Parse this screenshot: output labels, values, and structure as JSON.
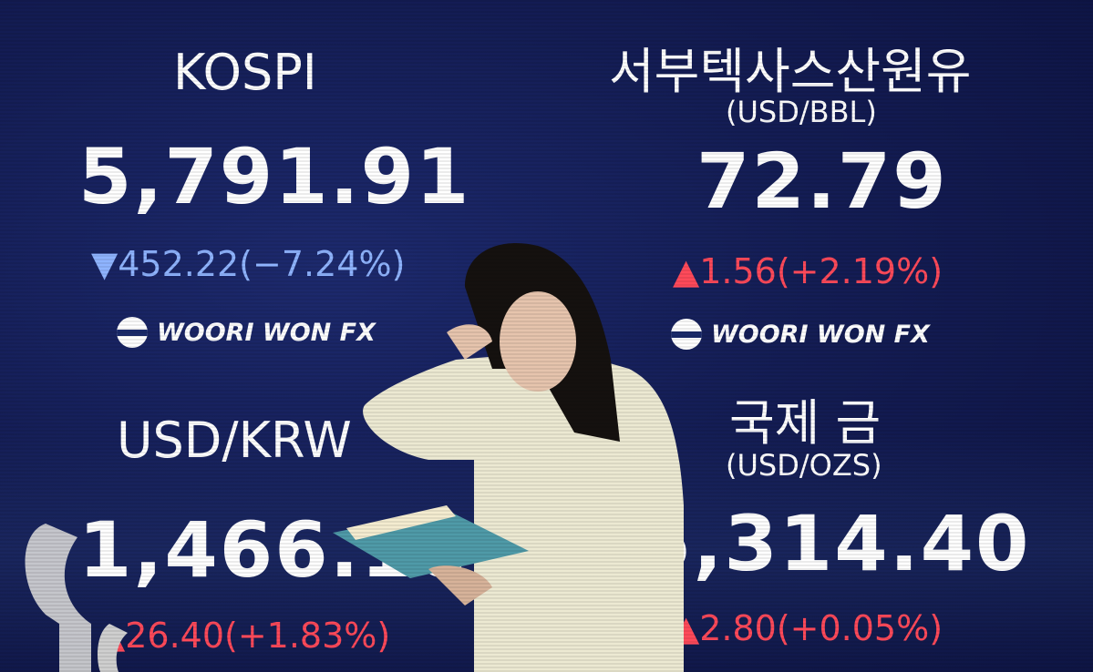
{
  "board": {
    "kospi": {
      "title": "KOSPI",
      "value": "5,791.91",
      "change": "▼452.22(−7.24%)",
      "direction": "down"
    },
    "wti": {
      "title": "서부텍사스산원유",
      "unit": "(USD/BBL)",
      "value": "72.79",
      "change": "▲1.56(+2.19%)",
      "direction": "up"
    },
    "usdkrw": {
      "title": "USD/KRW",
      "value": "1,466.10",
      "change": "▲26.40(+1.83%)",
      "direction": "up"
    },
    "gold": {
      "title": "국제 금",
      "unit": "(USD/OZS)",
      "value": "5,314.40",
      "change": "▲2.80(+0.05%)",
      "direction": "up"
    },
    "brand": "WOORI WON FX"
  },
  "colors": {
    "background": "#141d55",
    "down": "#8fb4ff",
    "up": "#ff4a5a",
    "text": "#ffffff"
  }
}
